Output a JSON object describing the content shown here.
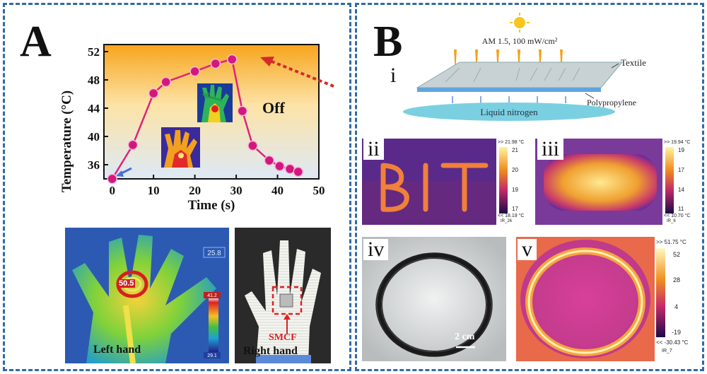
{
  "panels": {
    "a": {
      "letter": "A",
      "chart_label_off": "Off",
      "hands": {
        "left_label": "Left hand",
        "right_label": "Right hand",
        "hotspot_value": "50.5",
        "scale_top": "25.8",
        "scale_max": "41.2",
        "scale_min": "29.1",
        "sample_label": "SMCF"
      }
    },
    "b": {
      "letter": "B",
      "sub_labels": [
        "i",
        "ii",
        "iii",
        "iv",
        "v"
      ],
      "schematic": {
        "light_label": "AM 1.5, 100 mW/cm²",
        "textile_label": "Textile",
        "polypropylene_label": "Polypropylene",
        "nitrogen_label": "Liquid nitrogen"
      },
      "thermal_ii": {
        "max_text": ">> 21.98 °C",
        "min_text": "<< 18.19 °C",
        "ticks": [
          "21",
          "20",
          "19",
          "17"
        ],
        "file_label": "IR_26"
      },
      "thermal_iii": {
        "max_text": ">> 19.94 °C",
        "min_text": "<< 10.70 °C",
        "ticks": [
          "19",
          "17",
          "14",
          "11"
        ],
        "file_label": "IR_6"
      },
      "photo_iv": {
        "scale_bar": "2 cm"
      },
      "thermal_v": {
        "max_text": ">> 51.75 °C",
        "min_text": "<< -30.43 °C",
        "ticks": [
          "52",
          "28",
          "4",
          "-19"
        ],
        "file_label": "IR_7"
      }
    }
  },
  "chart_data": {
    "type": "line",
    "xlabel": "Time (s)",
    "ylabel": "Temperature (°C)",
    "xlim": [
      -2,
      50
    ],
    "ylim": [
      34,
      53
    ],
    "xticks": [
      0,
      10,
      20,
      30,
      40,
      50
    ],
    "yticks": [
      36,
      40,
      44,
      48,
      52
    ],
    "grid": false,
    "colors": {
      "line": "#e0237a",
      "marker": "#d4177e",
      "bg_top": "#f7a51c",
      "bg_bottom": "#dde9f7"
    },
    "series": [
      {
        "x": [
          0,
          5,
          10,
          13,
          20,
          25,
          29,
          31.5,
          34,
          38,
          40.5,
          43,
          45
        ],
        "y": [
          34,
          38.8,
          46.1,
          47.7,
          49.2,
          50.3,
          50.9,
          43.6,
          38.7,
          36.6,
          35.8,
          35.4,
          35.0
        ]
      }
    ]
  }
}
